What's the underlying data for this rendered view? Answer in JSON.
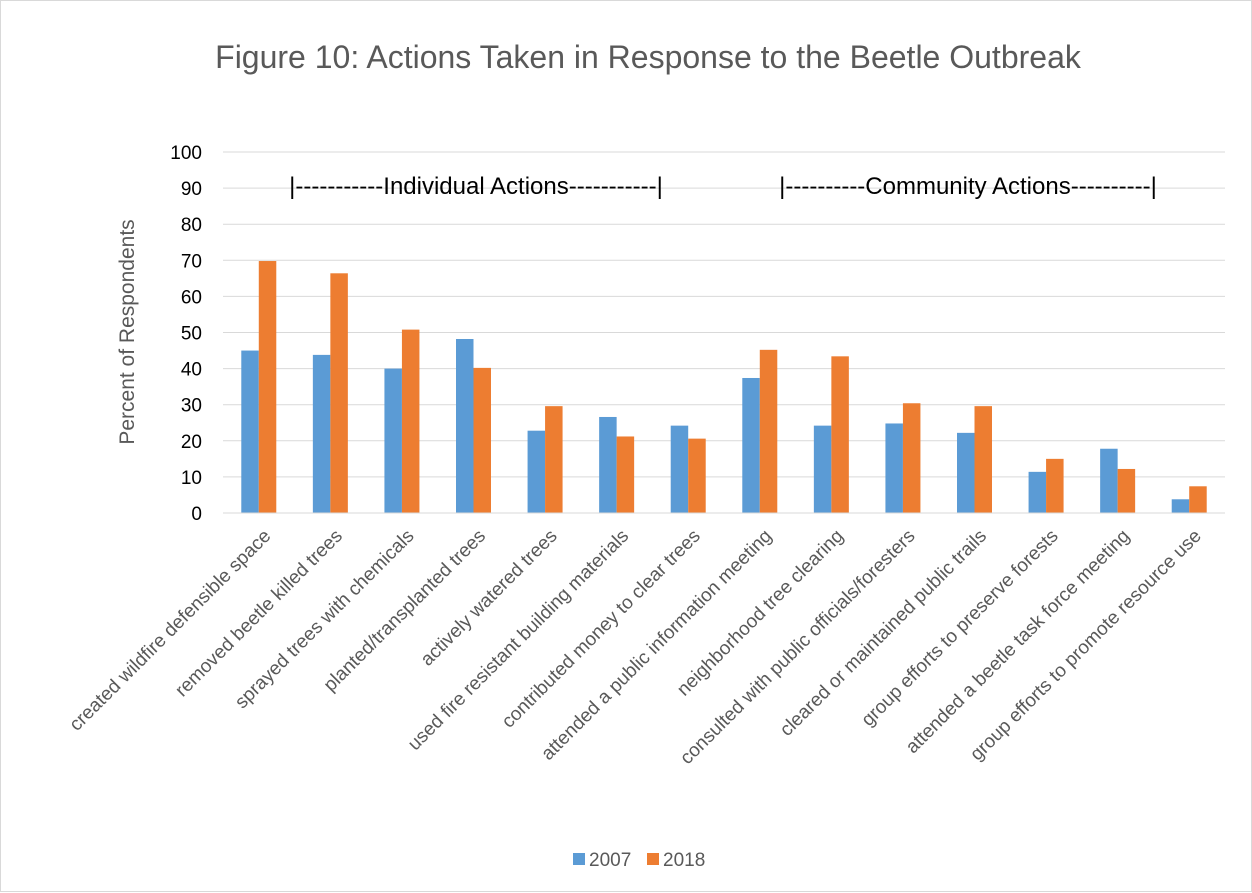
{
  "chart_data": {
    "type": "bar",
    "title": "Figure 10: Actions Taken in Response to the Beetle Outbreak",
    "xlabel": "",
    "ylabel": "Percent of Respondents",
    "ylim": [
      0,
      100
    ],
    "yticks": [
      "0",
      "10",
      "20",
      "30",
      "40",
      "50",
      "60",
      "70",
      "80",
      "90",
      "100"
    ],
    "grid": true,
    "legend_position": "bottom",
    "categories": [
      "created wildfire defensible space",
      "removed beetle killed trees",
      "sprayed trees with chemicals",
      "planted/transplanted trees",
      "actively watered trees",
      "used fire resistant building materials",
      "contributed money to clear trees",
      "attended a public information meeting",
      "neighborhood tree clearing",
      "consulted with public officials/foresters",
      "cleared or maintained public trails",
      "group efforts to preserve forests",
      "attended a beetle task force meeting",
      "group efforts to promote resource use"
    ],
    "series": [
      {
        "name": "2007",
        "color": "#5b9bd5",
        "values": [
          45,
          43.8,
          40,
          48.2,
          22.8,
          26.6,
          24.2,
          37.4,
          24.2,
          24.8,
          22.2,
          11.4,
          17.8,
          3.8
        ]
      },
      {
        "name": "2018",
        "color": "#ed7d31",
        "values": [
          69.8,
          66.4,
          50.8,
          40.2,
          29.6,
          21.2,
          20.6,
          45.2,
          43.4,
          30.4,
          29.6,
          15,
          12.2,
          7.4
        ]
      }
    ],
    "annotations": [
      "|-----------Individual Actions-----------|",
      "|----------Community Actions----------|"
    ]
  }
}
